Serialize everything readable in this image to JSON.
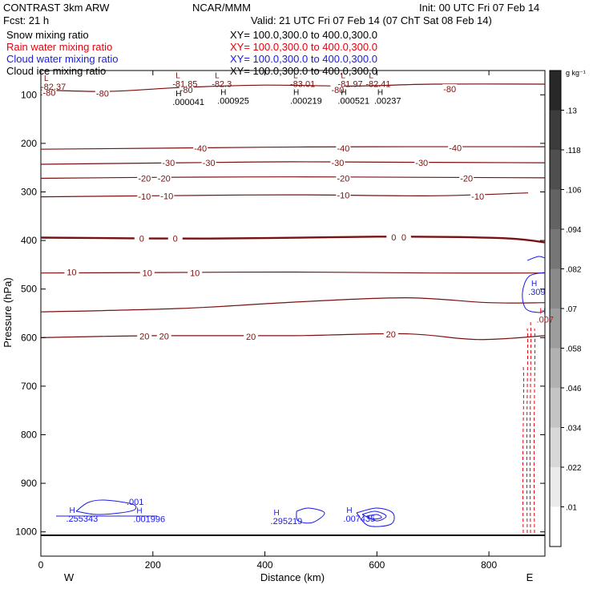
{
  "header": {
    "model_name": "CONTRAST  3km ARW",
    "org": "NCAR/MMM",
    "init": "Init: 00 UTC Fri 07 Feb 14",
    "fcst": "Fcst:   21 h",
    "valid": "Valid: 21 UTC Fri 07 Feb 14 (07 ChT Sat 08 Feb 14)"
  },
  "legend": [
    {
      "name": "Snow mixing ratio",
      "xy": "XY=  100.0,300.0 to 400.0,300.0",
      "color": "#000000"
    },
    {
      "name": "Rain water mixing ratio",
      "xy": "XY=  100.0,300.0 to 400.0,300.0",
      "color": "#e8000b"
    },
    {
      "name": "Cloud water mixing ratio",
      "xy": "XY=  100.0,300.0 to 400.0,300.0",
      "color": "#1a1ae6"
    },
    {
      "name": "Cloud ice mixing ratio",
      "xy": "XY=  100.0,300.0 to 400.0,300.0",
      "color": "#000000"
    }
  ],
  "chart_data": {
    "type": "contour",
    "xlabel": "Distance (km)",
    "ylabel": "Pressure (hPa)",
    "xlim": [
      0,
      900
    ],
    "ylim": [
      1050,
      50
    ],
    "x_ticks": [
      "0",
      "200",
      "400",
      "600",
      "800"
    ],
    "y_ticks": [
      "100",
      "200",
      "300",
      "400",
      "500",
      "600",
      "700",
      "800",
      "900",
      "1000"
    ],
    "x_endpoints": {
      "left": "W",
      "right": "E"
    },
    "colorbar": {
      "unit": "g kg⁻¹",
      "levels": [
        ".01",
        ".022",
        ".034",
        ".046",
        ".058",
        ".07",
        ".082",
        ".094",
        ".106",
        ".118",
        ".13"
      ]
    },
    "temperature_contours": [
      {
        "label": "-80",
        "points": [
          [
            0,
            90
          ],
          [
            120,
            93
          ],
          [
            250,
            85
          ],
          [
            400,
            80
          ],
          [
            560,
            82
          ],
          [
            700,
            78
          ],
          [
            900,
            78
          ]
        ],
        "labels_at": [
          [
            15,
            95
          ],
          [
            110,
            97
          ],
          [
            260,
            90
          ],
          [
            530,
            90
          ],
          [
            730,
            88
          ]
        ]
      },
      {
        "label": "-40",
        "points": [
          [
            0,
            212
          ],
          [
            200,
            210
          ],
          [
            400,
            208
          ],
          [
            600,
            207
          ],
          [
            900,
            207
          ]
        ],
        "labels_at": [
          [
            285,
            210
          ],
          [
            540,
            210
          ],
          [
            740,
            209
          ]
        ]
      },
      {
        "label": "-30",
        "points": [
          [
            0,
            243
          ],
          [
            250,
            240
          ],
          [
            450,
            238
          ],
          [
            650,
            239
          ],
          [
            900,
            240
          ]
        ],
        "labels_at": [
          [
            228,
            240
          ],
          [
            300,
            240
          ],
          [
            530,
            240
          ],
          [
            680,
            240
          ]
        ]
      },
      {
        "label": "-20",
        "points": [
          [
            0,
            272
          ],
          [
            200,
            270
          ],
          [
            450,
            269
          ],
          [
            700,
            270
          ],
          [
            900,
            271
          ]
        ],
        "labels_at": [
          [
            185,
            272
          ],
          [
            220,
            272
          ],
          [
            540,
            272
          ],
          [
            760,
            272
          ]
        ]
      },
      {
        "label": "-10",
        "points": [
          [
            0,
            310
          ],
          [
            200,
            308
          ],
          [
            450,
            306
          ],
          [
            700,
            308
          ],
          [
            870,
            302
          ]
        ],
        "labels_at": [
          [
            185,
            309
          ],
          [
            225,
            308
          ],
          [
            540,
            307
          ],
          [
            780,
            309
          ]
        ]
      },
      {
        "label": "0",
        "thick": true,
        "points": [
          [
            0,
            394
          ],
          [
            300,
            396
          ],
          [
            600,
            392
          ],
          [
            820,
            395
          ],
          [
            900,
            404
          ]
        ],
        "labels_at": [
          [
            180,
            396
          ],
          [
            240,
            396
          ],
          [
            630,
            393
          ],
          [
            648,
            393
          ]
        ]
      },
      {
        "label": "10",
        "points": [
          [
            0,
            467
          ],
          [
            200,
            466
          ],
          [
            450,
            465
          ],
          [
            700,
            467
          ],
          [
            900,
            467
          ]
        ],
        "labels_at": [
          [
            55,
            465
          ],
          [
            190,
            467
          ],
          [
            275,
            467
          ]
        ]
      },
      {
        "label": "",
        "points": [
          [
            0,
            547
          ],
          [
            250,
            540
          ],
          [
            450,
            527
          ],
          [
            650,
            518
          ],
          [
            800,
            528
          ],
          [
            900,
            528
          ]
        ],
        "labels_at": []
      },
      {
        "label": "20",
        "points": [
          [
            0,
            600
          ],
          [
            200,
            596
          ],
          [
            450,
            596
          ],
          [
            650,
            592
          ],
          [
            780,
            604
          ],
          [
            900,
            596
          ]
        ],
        "labels_at": [
          [
            185,
            597
          ],
          [
            220,
            597
          ],
          [
            375,
            598
          ],
          [
            625,
            593
          ]
        ]
      }
    ],
    "maxima_labels": [
      {
        "type": "L",
        "value": "-82.37",
        "series": "temperature"
      },
      {
        "type": "L",
        "value": "-81.85",
        "series": "temperature"
      },
      {
        "type": "L",
        "value": "-82.3",
        "series": "temperature"
      },
      {
        "type": "L",
        "value": "-83.01",
        "series": "temperature"
      },
      {
        "type": "L",
        "value": "-81.97",
        "series": "temperature"
      },
      {
        "type": "L",
        "value": "-82.41",
        "series": "temperature"
      },
      {
        "type": "H",
        "value": ".000041",
        "series": "snow"
      },
      {
        "type": "H",
        "value": ".000925",
        "series": "snow"
      },
      {
        "type": "H",
        "value": ".000219",
        "series": "snow"
      },
      {
        "type": "H",
        "value": ".000521",
        "series": "snow"
      },
      {
        "type": "H",
        "value": ".00237",
        "series": "snow"
      },
      {
        "type": "H",
        "value": ".255343",
        "series": "cloud water"
      },
      {
        "type": "H",
        "value": ".001996",
        "series": "cloud water"
      },
      {
        "type": "H",
        "value": ".295219",
        "series": "cloud water"
      },
      {
        "type": "H",
        "value": ".007435",
        "series": "cloud water"
      },
      {
        "type": "H",
        "value": ".309",
        "series": "cloud water"
      },
      {
        "type": "H",
        "value": ".007",
        "series": "rain water"
      }
    ],
    "contour_values": [
      ".001"
    ]
  }
}
